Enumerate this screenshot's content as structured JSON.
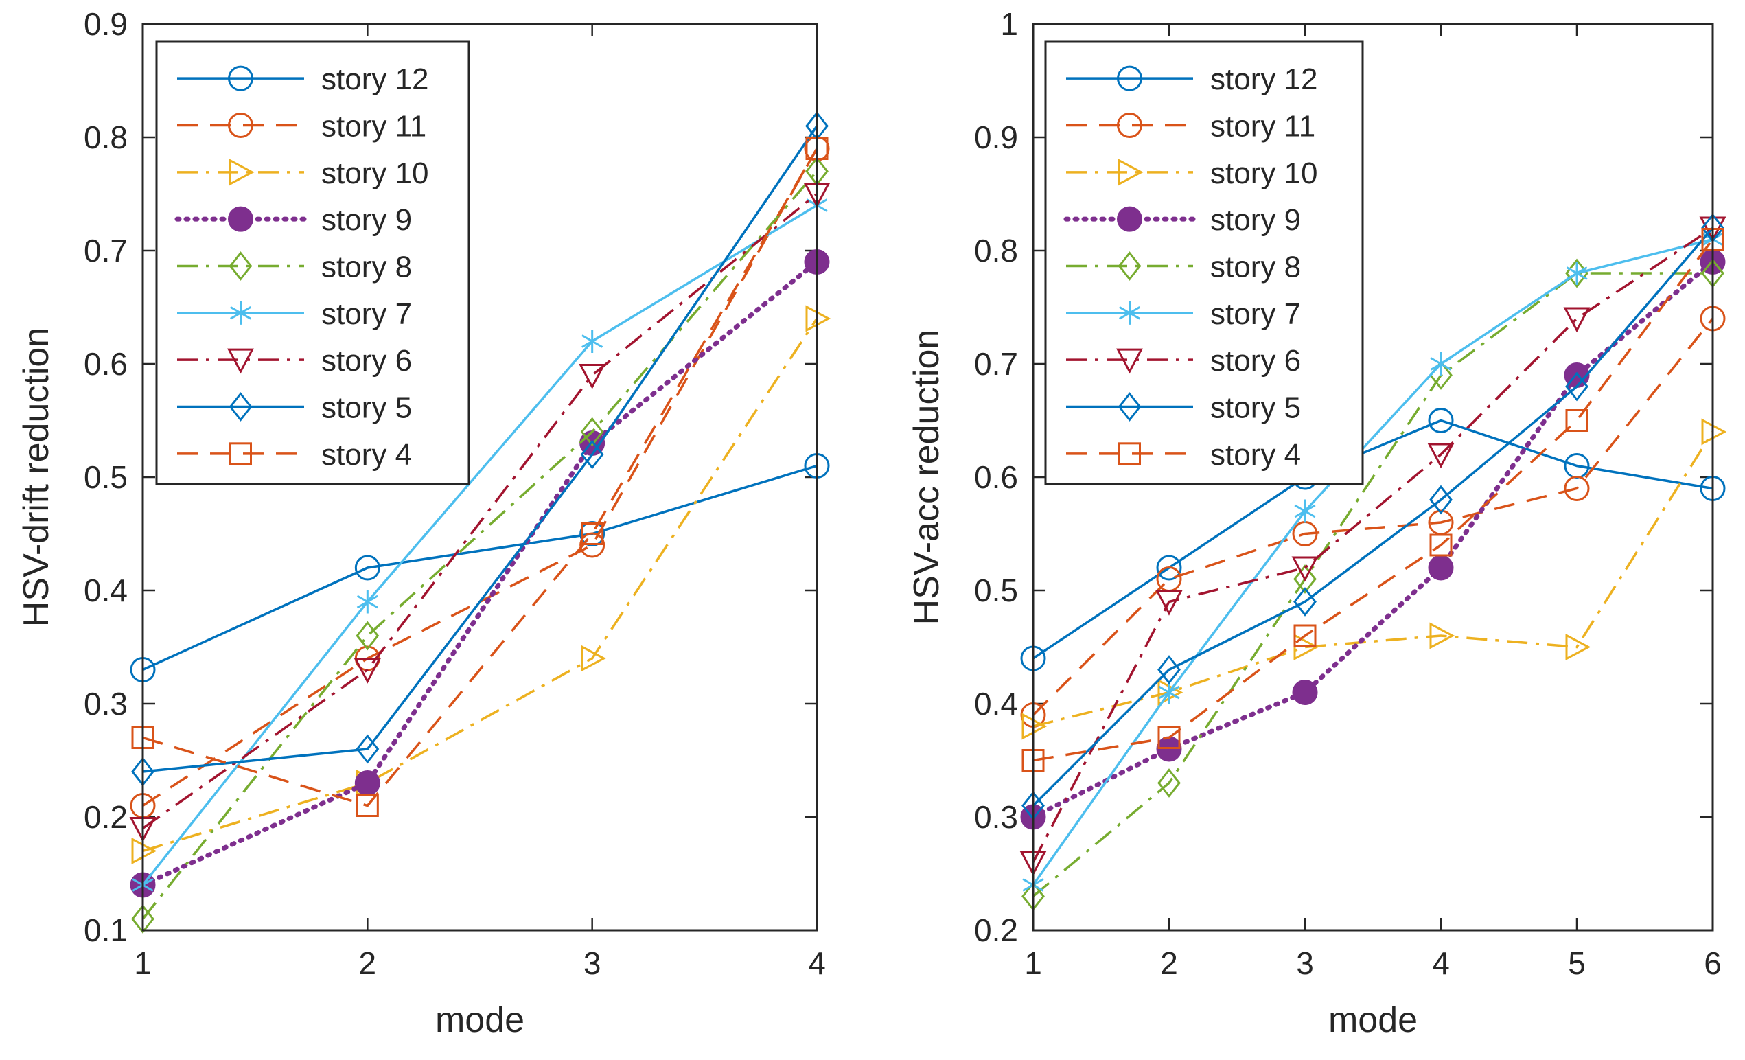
{
  "chart_data": [
    {
      "type": "line",
      "xlabel": "mode",
      "ylabel": "HSV-drift reduction",
      "x": [
        1,
        2,
        3,
        4
      ],
      "xlim": [
        1,
        4
      ],
      "ylim": [
        0.1,
        0.9
      ],
      "xticks": [
        "1",
        "2",
        "3",
        "4"
      ],
      "yticks": [
        "0.1",
        "0.2",
        "0.3",
        "0.4",
        "0.5",
        "0.6",
        "0.7",
        "0.8",
        "0.9"
      ],
      "grid": false,
      "legend_position": "top-left",
      "series": [
        {
          "name": "story 12",
          "values": [
            0.33,
            0.42,
            0.45,
            0.51
          ],
          "color": "#0072BD",
          "dash": "solid",
          "marker": "circle",
          "filled": false
        },
        {
          "name": "story 11",
          "values": [
            0.21,
            0.34,
            0.44,
            0.79
          ],
          "color": "#D95319",
          "dash": "dashed",
          "marker": "circle",
          "filled": false
        },
        {
          "name": "story 10",
          "values": [
            0.17,
            0.23,
            0.34,
            0.64
          ],
          "color": "#EDB120",
          "dash": "dashdot",
          "marker": "triangle-right",
          "filled": false
        },
        {
          "name": "story 9",
          "values": [
            0.14,
            0.23,
            0.53,
            0.69
          ],
          "color": "#7E2F8E",
          "dash": "dotted",
          "marker": "circle",
          "filled": true
        },
        {
          "name": "story 8",
          "values": [
            0.11,
            0.36,
            0.54,
            0.77
          ],
          "color": "#77AC30",
          "dash": "dashdot",
          "marker": "diamond",
          "filled": false
        },
        {
          "name": "story 7",
          "values": [
            0.14,
            0.39,
            0.62,
            0.74
          ],
          "color": "#4DBEEE",
          "dash": "solid",
          "marker": "asterisk",
          "filled": false
        },
        {
          "name": "story 6",
          "values": [
            0.19,
            0.33,
            0.59,
            0.75
          ],
          "color": "#A2142F",
          "dash": "dashdot",
          "marker": "triangle-down",
          "filled": false
        },
        {
          "name": "story 5",
          "values": [
            0.24,
            0.26,
            0.52,
            0.81
          ],
          "color": "#0072BD",
          "dash": "solid",
          "marker": "diamond",
          "filled": false
        },
        {
          "name": "story 4",
          "values": [
            0.27,
            0.21,
            0.45,
            0.79
          ],
          "color": "#D95319",
          "dash": "dashed",
          "marker": "square",
          "filled": false
        }
      ]
    },
    {
      "type": "line",
      "xlabel": "mode",
      "ylabel": "HSV-acc reduction",
      "x": [
        1,
        2,
        3,
        4,
        5,
        6
      ],
      "xlim": [
        1,
        6
      ],
      "ylim": [
        0.2,
        1.0
      ],
      "xticks": [
        "1",
        "2",
        "3",
        "4",
        "5",
        "6"
      ],
      "yticks": [
        "0.2",
        "0.3",
        "0.4",
        "0.5",
        "0.6",
        "0.7",
        "0.8",
        "0.9",
        "1"
      ],
      "grid": false,
      "legend_position": "top-left",
      "series": [
        {
          "name": "story 12",
          "values": [
            0.44,
            0.52,
            0.6,
            0.65,
            0.61,
            0.59
          ],
          "color": "#0072BD",
          "dash": "solid",
          "marker": "circle",
          "filled": false
        },
        {
          "name": "story 11",
          "values": [
            0.39,
            0.51,
            0.55,
            0.56,
            0.59,
            0.74
          ],
          "color": "#D95319",
          "dash": "dashed",
          "marker": "circle",
          "filled": false
        },
        {
          "name": "story 10",
          "values": [
            0.38,
            0.41,
            0.45,
            0.46,
            0.45,
            0.64
          ],
          "color": "#EDB120",
          "dash": "dashdot",
          "marker": "triangle-right",
          "filled": false
        },
        {
          "name": "story 9",
          "values": [
            0.3,
            0.36,
            0.41,
            0.52,
            0.69,
            0.79
          ],
          "color": "#7E2F8E",
          "dash": "dotted",
          "marker": "circle",
          "filled": true
        },
        {
          "name": "story 8",
          "values": [
            0.23,
            0.33,
            0.51,
            0.69,
            0.78,
            0.78
          ],
          "color": "#77AC30",
          "dash": "dashdot",
          "marker": "diamond",
          "filled": false
        },
        {
          "name": "story 7",
          "values": [
            0.24,
            0.41,
            0.57,
            0.7,
            0.78,
            0.81
          ],
          "color": "#4DBEEE",
          "dash": "solid",
          "marker": "asterisk",
          "filled": false
        },
        {
          "name": "story 6",
          "values": [
            0.26,
            0.49,
            0.52,
            0.62,
            0.74,
            0.82
          ],
          "color": "#A2142F",
          "dash": "dashdot",
          "marker": "triangle-down",
          "filled": false
        },
        {
          "name": "story 5",
          "values": [
            0.31,
            0.43,
            0.49,
            0.58,
            0.68,
            0.82
          ],
          "color": "#0072BD",
          "dash": "solid",
          "marker": "diamond",
          "filled": false
        },
        {
          "name": "story 4",
          "values": [
            0.35,
            0.37,
            0.46,
            0.54,
            0.65,
            0.81
          ],
          "color": "#D95319",
          "dash": "dashed",
          "marker": "square",
          "filled": false
        }
      ]
    }
  ]
}
